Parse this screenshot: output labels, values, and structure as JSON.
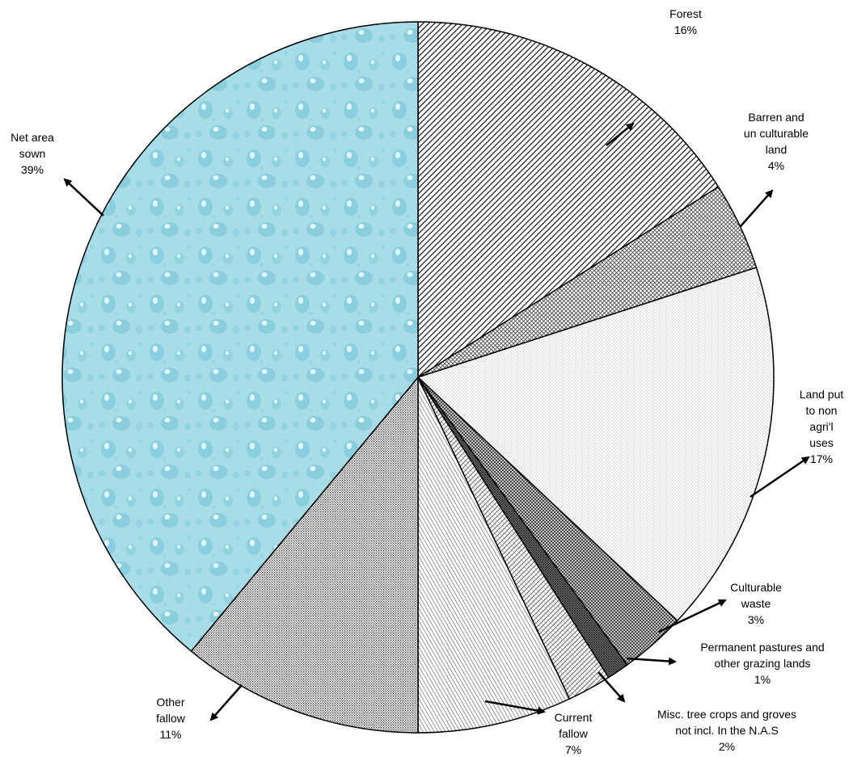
{
  "chart_data": {
    "type": "pie",
    "title": "",
    "start": "top",
    "direction": "clockwise",
    "slices": [
      {
        "label": [
          "Forest"
        ],
        "value": 16,
        "pct_label": "16%",
        "pattern": "diag-dense",
        "bg": "#ffffff"
      },
      {
        "label": [
          "Barren and",
          "un culturable",
          "land"
        ],
        "value": 4,
        "pct_label": "4%",
        "pattern": "crosshatch-fine",
        "bg": "#ffffff"
      },
      {
        "label": [
          "Land put",
          "to non",
          "agri'l",
          "uses"
        ],
        "value": 17,
        "pct_label": "17%",
        "pattern": "dots-light",
        "bg": "#ffffff"
      },
      {
        "label": [
          "Culturable",
          "waste"
        ],
        "value": 3,
        "pct_label": "3%",
        "pattern": "crosshatch-medium",
        "bg": "#ffffff"
      },
      {
        "label": [
          "Permanent pastures and",
          "other grazing lands"
        ],
        "value": 1,
        "pct_label": "1%",
        "pattern": "crosshatch-dense",
        "bg": "#ffffff"
      },
      {
        "label": [
          "Misc. tree crops and groves",
          "not incl. In the N.A.S"
        ],
        "value": 2,
        "pct_label": "2%",
        "pattern": "diag-light",
        "bg": "#ffffff"
      },
      {
        "label": [
          "Current",
          "fallow"
        ],
        "value": 7,
        "pct_label": "7%",
        "pattern": "diag-medium",
        "bg": "#ffffff"
      },
      {
        "label": [
          "Other",
          "fallow"
        ],
        "value": 11,
        "pct_label": "11%",
        "pattern": "dots-dense",
        "bg": "#ffffff"
      },
      {
        "label": [
          "Net area",
          "sown"
        ],
        "value": 39,
        "pct_label": "39%",
        "pattern": "water-drops",
        "bg": "#a8dde8"
      }
    ]
  }
}
